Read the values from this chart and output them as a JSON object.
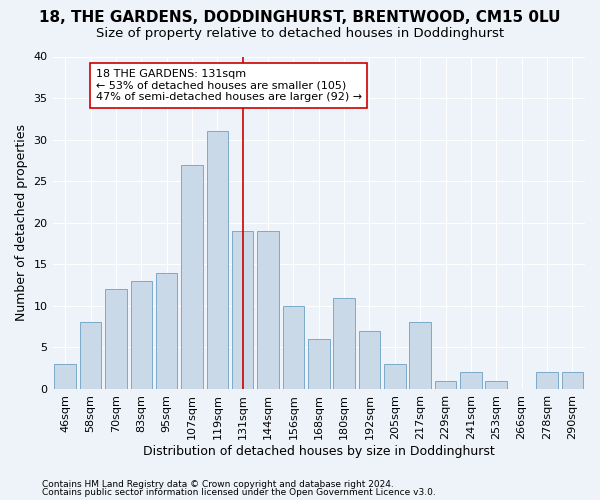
{
  "title1": "18, THE GARDENS, DODDINGHURST, BRENTWOOD, CM15 0LU",
  "title2": "Size of property relative to detached houses in Doddinghurst",
  "xlabel": "Distribution of detached houses by size in Doddinghurst",
  "ylabel": "Number of detached properties",
  "footnote1": "Contains HM Land Registry data © Crown copyright and database right 2024.",
  "footnote2": "Contains public sector information licensed under the Open Government Licence v3.0.",
  "annotation_line1": "18 THE GARDENS: 131sqm",
  "annotation_line2": "← 53% of detached houses are smaller (105)",
  "annotation_line3": "47% of semi-detached houses are larger (92) →",
  "property_size_label": "131sqm",
  "bar_color": "#c9d9e8",
  "bar_edge_color": "#7aaac8",
  "marker_line_color": "#cc0000",
  "background_color": "#eef3f9",
  "categories": [
    "46sqm",
    "58sqm",
    "70sqm",
    "83sqm",
    "95sqm",
    "107sqm",
    "119sqm",
    "131sqm",
    "144sqm",
    "156sqm",
    "168sqm",
    "180sqm",
    "192sqm",
    "205sqm",
    "217sqm",
    "229sqm",
    "241sqm",
    "253sqm",
    "266sqm",
    "278sqm",
    "290sqm"
  ],
  "values": [
    3,
    8,
    12,
    13,
    14,
    27,
    31,
    19,
    19,
    10,
    6,
    11,
    7,
    3,
    8,
    1,
    2,
    1,
    0,
    2,
    2
  ],
  "ylim": [
    0,
    40
  ],
  "yticks": [
    0,
    5,
    10,
    15,
    20,
    25,
    30,
    35,
    40
  ],
  "grid_color": "#ffffff",
  "title1_fontsize": 11,
  "title2_fontsize": 9.5,
  "axis_label_fontsize": 9,
  "tick_fontsize": 8,
  "annot_fontsize": 8,
  "footnote_fontsize": 6.5
}
